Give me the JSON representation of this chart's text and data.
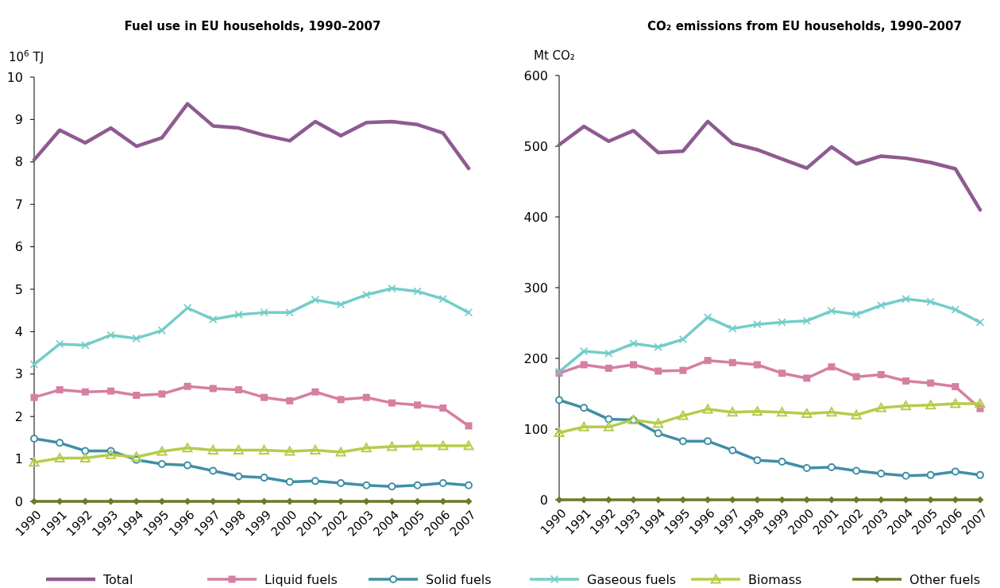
{
  "chart_data": [
    {
      "type": "line",
      "title": "Fuel use in EU households, 1990–2007",
      "ylabel": "10$^{6}$ TJ",
      "categories": [
        "1990",
        "1991",
        "1992",
        "1993",
        "1994",
        "1995",
        "1996",
        "1997",
        "1998",
        "1999",
        "2000",
        "2001",
        "2002",
        "2003",
        "2004",
        "2005",
        "2006",
        "2007"
      ],
      "ylim": [
        0,
        10
      ],
      "yticks": [
        0,
        1,
        2,
        3,
        4,
        5,
        6,
        7,
        8,
        9,
        10
      ],
      "grid": false,
      "legend": "bottom",
      "series": [
        {
          "name": "Total",
          "color": "#8e5a91",
          "marker": "none",
          "values": [
            8.05,
            8.75,
            8.45,
            8.8,
            8.37,
            8.57,
            9.37,
            8.85,
            8.8,
            8.63,
            8.5,
            8.95,
            8.62,
            8.93,
            8.95,
            8.88,
            8.68,
            7.85
          ]
        },
        {
          "name": "Liquid fuels",
          "color": "#d57fa2",
          "marker": "square",
          "values": [
            2.45,
            2.63,
            2.58,
            2.6,
            2.5,
            2.53,
            2.71,
            2.66,
            2.63,
            2.45,
            2.37,
            2.58,
            2.4,
            2.45,
            2.32,
            2.27,
            2.2,
            1.78
          ]
        },
        {
          "name": "Solid fuels",
          "color": "#3f8fa5",
          "marker": "circle",
          "values": [
            1.48,
            1.38,
            1.19,
            1.19,
            0.98,
            0.88,
            0.85,
            0.72,
            0.59,
            0.56,
            0.46,
            0.48,
            0.43,
            0.38,
            0.35,
            0.38,
            0.43,
            0.38
          ]
        },
        {
          "name": "Gaseous fuels",
          "color": "#74cdc8",
          "marker": "cross",
          "values": [
            3.23,
            3.71,
            3.68,
            3.92,
            3.84,
            4.03,
            4.56,
            4.29,
            4.4,
            4.45,
            4.45,
            4.75,
            4.64,
            4.87,
            5.02,
            4.95,
            4.77,
            4.45
          ]
        },
        {
          "name": "Biomass",
          "color": "#b5cc4a",
          "marker": "triangle",
          "values": [
            0.92,
            1.02,
            1.02,
            1.1,
            1.05,
            1.18,
            1.26,
            1.21,
            1.21,
            1.21,
            1.18,
            1.21,
            1.16,
            1.26,
            1.29,
            1.31,
            1.31,
            1.31
          ]
        },
        {
          "name": "Other fuels",
          "color": "#6b7a29",
          "marker": "diamond",
          "values": [
            0,
            0,
            0,
            0,
            0,
            0,
            0,
            0,
            0,
            0,
            0,
            0,
            0,
            0,
            0,
            0,
            0,
            0
          ]
        }
      ]
    },
    {
      "type": "line",
      "title": "CO₂ emissions from EU households, 1990–2007",
      "ylabel": "Mt CO₂",
      "categories": [
        "1990",
        "1991",
        "1992",
        "1993",
        "1994",
        "1995",
        "1996",
        "1997",
        "1998",
        "1999",
        "2000",
        "2001",
        "2002",
        "2003",
        "2004",
        "2005",
        "2006",
        "2007"
      ],
      "ylim": [
        0,
        600
      ],
      "yticks": [
        0,
        100,
        200,
        300,
        400,
        500,
        600
      ],
      "grid": false,
      "legend": "bottom",
      "series": [
        {
          "name": "Total",
          "color": "#8e5a91",
          "marker": "none",
          "values": [
            502,
            528,
            507,
            522,
            491,
            493,
            535,
            504,
            495,
            482,
            469,
            499,
            475,
            486,
            483,
            477,
            468,
            410
          ]
        },
        {
          "name": "Liquid fuels",
          "color": "#d57fa2",
          "marker": "square",
          "values": [
            179,
            191,
            186,
            191,
            182,
            183,
            197,
            194,
            191,
            179,
            172,
            188,
            174,
            177,
            168,
            165,
            160,
            129
          ]
        },
        {
          "name": "Solid fuels",
          "color": "#3f8fa5",
          "marker": "circle",
          "values": [
            141,
            130,
            114,
            113,
            94,
            83,
            83,
            70,
            56,
            54,
            45,
            46,
            41,
            37,
            34,
            35,
            40,
            35
          ]
        },
        {
          "name": "Gaseous fuels",
          "color": "#74cdc8",
          "marker": "cross",
          "values": [
            181,
            210,
            207,
            221,
            216,
            227,
            258,
            242,
            248,
            251,
            253,
            267,
            262,
            275,
            284,
            280,
            269,
            251
          ]
        },
        {
          "name": "Biomass",
          "color": "#b5cc4a",
          "marker": "triangle",
          "values": [
            95,
            103,
            103,
            113,
            108,
            119,
            128,
            124,
            125,
            124,
            122,
            124,
            120,
            130,
            133,
            134,
            136,
            136
          ]
        },
        {
          "name": "Other fuels",
          "color": "#6b7a29",
          "marker": "diamond",
          "values": [
            0,
            0,
            0,
            0,
            0,
            0,
            0,
            0,
            0,
            0,
            0,
            0,
            0,
            0,
            0,
            0,
            0,
            0
          ]
        }
      ]
    }
  ]
}
